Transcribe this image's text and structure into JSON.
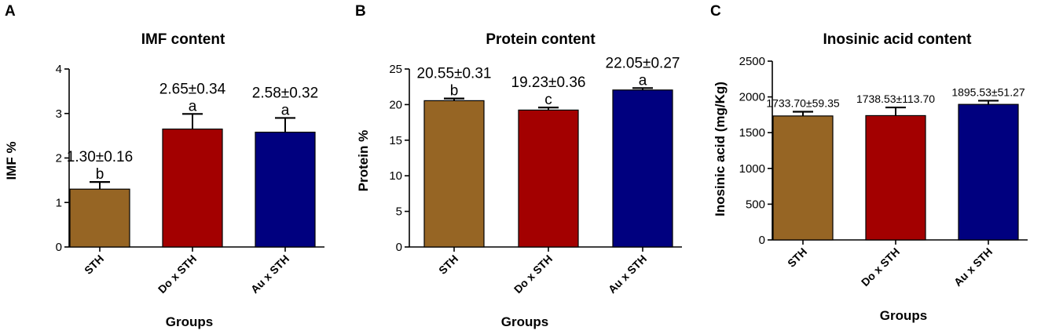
{
  "chart_data": [
    {
      "type": "bar",
      "panel": "A",
      "title": "IMF content",
      "xlabel": "Groups",
      "ylabel": "IMF %",
      "ylim": [
        0,
        4
      ],
      "yticks": [
        0,
        1,
        2,
        3,
        4
      ],
      "categories": [
        "STH",
        "Do x STH",
        "Au x STH"
      ],
      "values": [
        1.3,
        2.65,
        2.58
      ],
      "errors": [
        0.16,
        0.34,
        0.32
      ],
      "value_labels": [
        "1.30±0.16",
        "2.65±0.34",
        "2.58±0.32"
      ],
      "letters": [
        "b",
        "a",
        "a"
      ],
      "colors": [
        "#966524",
        "#a30000",
        "#00007f"
      ]
    },
    {
      "type": "bar",
      "panel": "B",
      "title": "Protein content",
      "xlabel": "Groups",
      "ylabel": "Protein %",
      "ylim": [
        0,
        25
      ],
      "yticks": [
        0,
        5,
        10,
        15,
        20,
        25
      ],
      "categories": [
        "STH",
        "Do x STH",
        "Au x STH"
      ],
      "values": [
        20.55,
        19.23,
        22.05
      ],
      "errors": [
        0.31,
        0.36,
        0.27
      ],
      "value_labels": [
        "20.55±0.31",
        "19.23±0.36",
        "22.05±0.27"
      ],
      "letters": [
        "b",
        "c",
        "a"
      ],
      "colors": [
        "#966524",
        "#a30000",
        "#00007f"
      ]
    },
    {
      "type": "bar",
      "panel": "C",
      "title": "Inosinic acid content",
      "xlabel": "Groups",
      "ylabel": "Inosinic acid (mg/Kg)",
      "ylim": [
        0,
        2500
      ],
      "yticks": [
        0,
        500,
        1000,
        1500,
        2000,
        2500
      ],
      "categories": [
        "STH",
        "Do x STH",
        "Au x STH"
      ],
      "values": [
        1733.7,
        1738.53,
        1895.53
      ],
      "errors": [
        59.35,
        113.7,
        51.27
      ],
      "value_labels": [
        "1733.70±59.35",
        "1738.53±113.70",
        "1895.53±51.27"
      ],
      "letters": [
        "",
        "",
        ""
      ],
      "colors": [
        "#966524",
        "#a30000",
        "#00007f"
      ]
    }
  ]
}
